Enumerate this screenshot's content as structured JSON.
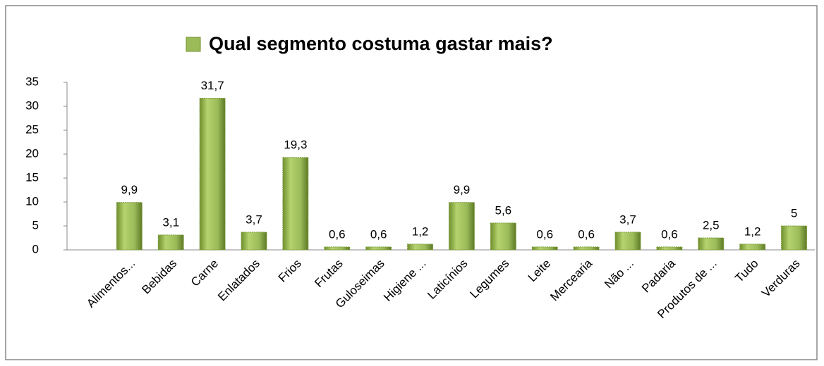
{
  "chart_data": {
    "type": "bar",
    "title": "Qual segmento costuma gastar mais?",
    "categories": [
      null,
      "Alimentos...",
      "Bebidas",
      "Carne",
      "Enlatados",
      "Frios",
      "Frutas",
      "Guloseimas",
      "Higiene ...",
      "Laticínios",
      "Legumes",
      "Leite",
      "Mercearia",
      "Não ...",
      "Padaria",
      "Produtos de ...",
      "Tudo",
      "Verduras"
    ],
    "values": [
      null,
      9.9,
      3.1,
      31.7,
      3.7,
      19.3,
      0.6,
      0.6,
      1.2,
      9.9,
      5.6,
      0.6,
      0.6,
      3.7,
      0.6,
      2.5,
      1.2,
      5
    ],
    "value_labels": [
      null,
      "9,9",
      "3,1",
      "31,7",
      "3,7",
      "19,3",
      "0,6",
      "0,6",
      "1,2",
      "9,9",
      "5,6",
      "0,6",
      "0,6",
      "3,7",
      "0,6",
      "2,5",
      "1,2",
      "5"
    ],
    "color": "#9bbb59",
    "ylim": [
      0,
      35
    ],
    "yticks": [
      0,
      5,
      10,
      15,
      20,
      25,
      30,
      35
    ],
    "grid": false
  }
}
